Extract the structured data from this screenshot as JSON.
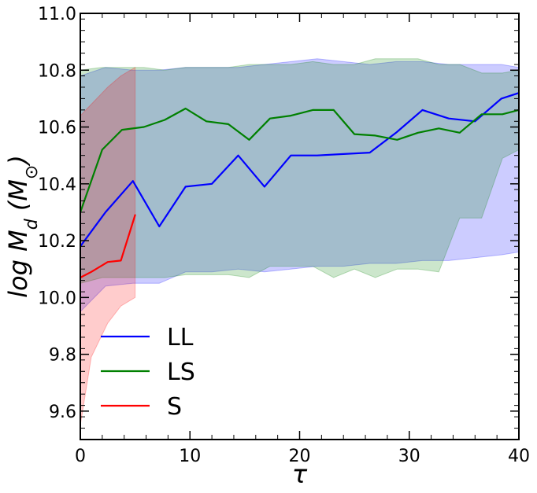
{
  "chart_data": {
    "type": "line",
    "xlabel": "τ",
    "ylabel": "log M_d (M_⊙)",
    "xlim": [
      0,
      40
    ],
    "ylim": [
      9.5,
      11.0
    ],
    "x_ticks": [
      0,
      10,
      20,
      30,
      40
    ],
    "x_tick_labels": [
      "0",
      "10",
      "20",
      "30",
      "40"
    ],
    "y_ticks": [
      9.6,
      9.8,
      10.0,
      10.2,
      10.4,
      10.6,
      10.8,
      11.0
    ],
    "y_tick_labels": [
      "9.6",
      "9.8",
      "10.0",
      "10.2",
      "10.4",
      "10.6",
      "10.8",
      "11.0"
    ],
    "grid": false,
    "legend_position": "lower-left",
    "series": [
      {
        "name": "LL",
        "color": "#0000ff",
        "band_color": "#0000ff",
        "band_opacity": 0.2,
        "x": [
          0,
          2.3,
          4.8,
          7.2,
          9.6,
          12,
          14.4,
          16.8,
          19.2,
          21.6,
          24,
          26.4,
          28.8,
          31.2,
          33.6,
          36,
          38.4,
          40
        ],
        "y": [
          10.18,
          10.3,
          10.41,
          10.25,
          10.39,
          10.4,
          10.5,
          10.39,
          10.5,
          10.5,
          10.505,
          10.51,
          10.58,
          10.66,
          10.63,
          10.62,
          10.7,
          10.72
        ],
        "y_lower": [
          9.95,
          10.04,
          10.05,
          10.05,
          10.09,
          10.09,
          10.1,
          10.09,
          10.1,
          10.11,
          10.11,
          10.12,
          10.12,
          10.13,
          10.13,
          10.14,
          10.15,
          10.16
        ],
        "y_upper": [
          10.78,
          10.81,
          10.8,
          10.8,
          10.81,
          10.81,
          10.81,
          10.82,
          10.83,
          10.84,
          10.83,
          10.82,
          10.83,
          10.83,
          10.82,
          10.82,
          10.82,
          10.81
        ]
      },
      {
        "name": "LS",
        "color": "#008000",
        "band_color": "#008000",
        "band_opacity": 0.2,
        "x": [
          0,
          2,
          3.8,
          5.8,
          7.7,
          9.6,
          11.5,
          13.5,
          15.4,
          17.3,
          19.2,
          21.2,
          23.1,
          25,
          26.9,
          28.9,
          30.8,
          32.7,
          34.6,
          36.6,
          38.5,
          40
        ],
        "y": [
          10.3,
          10.52,
          10.59,
          10.6,
          10.625,
          10.665,
          10.62,
          10.61,
          10.555,
          10.63,
          10.64,
          10.66,
          10.66,
          10.575,
          10.57,
          10.555,
          10.58,
          10.595,
          10.58,
          10.645,
          10.645,
          10.66
        ],
        "y_lower": [
          10.05,
          10.07,
          10.07,
          10.07,
          10.07,
          10.08,
          10.08,
          10.08,
          10.07,
          10.11,
          10.11,
          10.11,
          10.07,
          10.1,
          10.07,
          10.1,
          10.1,
          10.09,
          10.28,
          10.28,
          10.49,
          10.52
        ],
        "y_upper": [
          10.8,
          10.81,
          10.81,
          10.81,
          10.8,
          10.81,
          10.81,
          10.81,
          10.82,
          10.82,
          10.82,
          10.83,
          10.82,
          10.82,
          10.84,
          10.84,
          10.84,
          10.82,
          10.82,
          10.79,
          10.79,
          10.8
        ]
      },
      {
        "name": "S",
        "color": "#ff0000",
        "band_color": "#ff0000",
        "band_opacity": 0.2,
        "x": [
          0,
          1,
          2.5,
          3.7,
          5
        ],
        "y": [
          10.07,
          10.09,
          10.125,
          10.13,
          10.29
        ],
        "y_lower": [
          9.55,
          9.79,
          9.91,
          9.97,
          10.0
        ],
        "y_upper": [
          10.64,
          10.68,
          10.74,
          10.78,
          10.81
        ]
      }
    ]
  }
}
